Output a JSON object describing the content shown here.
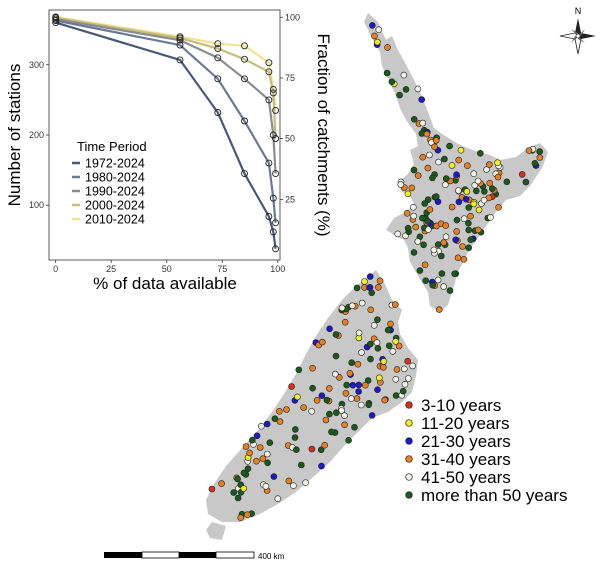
{
  "chart_data": {
    "type": "line",
    "xlabel": "% of data available",
    "ylabel": "Number of stations",
    "y2label": "Fraction of catchments (%)",
    "xlim": [
      -3,
      101
    ],
    "ylim": [
      22,
      378
    ],
    "y2lim": [
      0,
      103
    ],
    "x_ticks": [
      0,
      25,
      50,
      75,
      100
    ],
    "y_ticks": [
      100,
      200,
      300
    ],
    "y2_ticks": [
      25,
      50,
      75,
      100
    ],
    "grid": false,
    "legend_title": "Time Period",
    "legend_position": "left",
    "series": [
      {
        "name": "1972-2024",
        "color": "#4a5878",
        "points": [
          [
            0,
            360
          ],
          [
            56,
            307
          ],
          [
            73,
            232
          ],
          [
            85,
            145
          ],
          [
            96,
            84
          ],
          [
            98,
            62
          ],
          [
            99,
            38
          ]
        ]
      },
      {
        "name": "1980-2024",
        "color": "#6c7896",
        "points": [
          [
            0,
            363
          ],
          [
            56,
            328
          ],
          [
            73,
            280
          ],
          [
            85,
            220
          ],
          [
            96,
            160
          ],
          [
            98,
            110
          ],
          [
            99,
            75
          ]
        ]
      },
      {
        "name": "1990-2024",
        "color": "#8a8d8f",
        "points": [
          [
            0,
            365
          ],
          [
            56,
            335
          ],
          [
            73,
            310
          ],
          [
            85,
            280
          ],
          [
            96,
            250
          ],
          [
            98,
            200
          ],
          [
            99,
            145
          ]
        ]
      },
      {
        "name": "2000-2024",
        "color": "#c5bd7e",
        "points": [
          [
            0,
            367
          ],
          [
            56,
            338
          ],
          [
            73,
            323
          ],
          [
            85,
            308
          ],
          [
            96,
            290
          ],
          [
            98,
            260
          ],
          [
            99,
            195
          ]
        ]
      },
      {
        "name": "2010-2024",
        "color": "#f0e58c",
        "points": [
          [
            0,
            368
          ],
          [
            56,
            340
          ],
          [
            73,
            330
          ],
          [
            85,
            327
          ],
          [
            96,
            303
          ],
          [
            98,
            265
          ],
          [
            99,
            235
          ]
        ]
      }
    ]
  },
  "map": {
    "land_color": "#c8c8c8",
    "compass_label": "N",
    "scale_label": "400 km",
    "legend": [
      {
        "label": "3-10 years",
        "color": "#d7301f"
      },
      {
        "label": "11-20 years",
        "color": "#f0f01e"
      },
      {
        "label": "21-30 years",
        "color": "#1a1ac8"
      },
      {
        "label": "31-40 years",
        "color": "#e8801e"
      },
      {
        "label": "41-50 years",
        "color": "#f2f2e8"
      },
      {
        "label": "more than 50 years",
        "color": "#1a5a1a"
      }
    ]
  }
}
